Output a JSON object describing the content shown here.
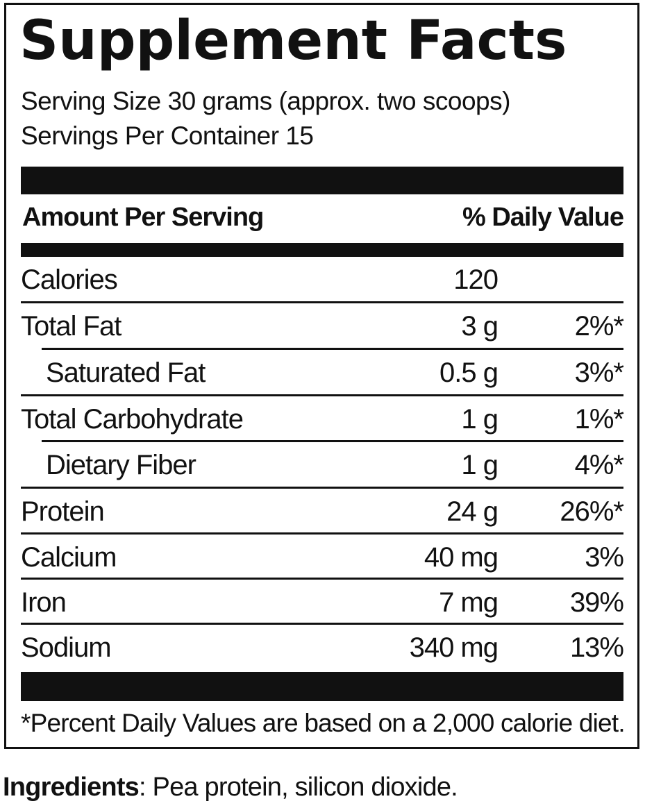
{
  "title": "Supplement Facts",
  "serving_size": "Serving Size 30 grams (approx. two scoops)",
  "servings_per_container": "Servings Per Container 15",
  "header": {
    "amount_label": "Amount Per Serving",
    "dv_label": "% Daily Value"
  },
  "rows": [
    {
      "name": "Calories",
      "amount": "120",
      "dv": ""
    },
    {
      "name": "Total Fat",
      "amount": "3 g",
      "dv": "2%*"
    },
    {
      "name": "Saturated Fat",
      "amount": "0.5 g",
      "dv": "3%*"
    },
    {
      "name": "Total Carbohydrate",
      "amount": "1 g",
      "dv": "1%*"
    },
    {
      "name": "Dietary Fiber",
      "amount": "1 g",
      "dv": "4%*"
    },
    {
      "name": "Protein",
      "amount": "24 g",
      "dv": "26%*"
    },
    {
      "name": "Calcium",
      "amount": "40 mg",
      "dv": "3%"
    },
    {
      "name": "Iron",
      "amount": "7 mg",
      "dv": "39%"
    },
    {
      "name": "Sodium",
      "amount": "340 mg",
      "dv": "13%"
    }
  ],
  "footnote": "*Percent Daily Values are based on a 2,000 calorie diet.",
  "ingredients": {
    "label": "Ingredients",
    "text": ": Pea protein, silicon dioxide."
  }
}
